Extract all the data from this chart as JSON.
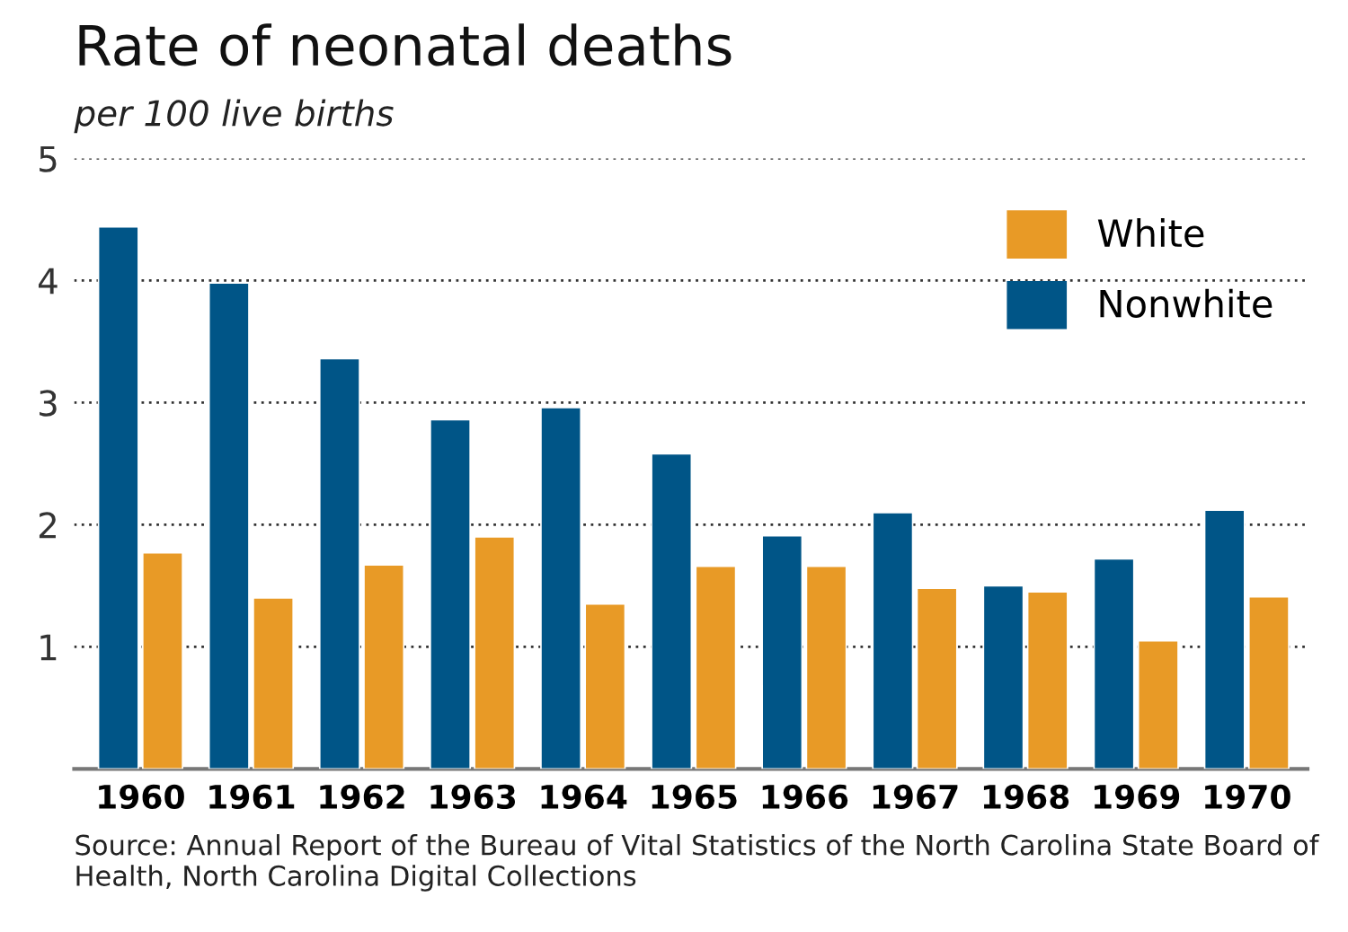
{
  "chart_data": {
    "type": "bar",
    "title": "Rate of neonatal deaths",
    "subtitle": "per 100 live births",
    "categories": [
      "1960",
      "1961",
      "1962",
      "1963",
      "1964",
      "1965",
      "1966",
      "1967",
      "1968",
      "1969",
      "1970"
    ],
    "series": [
      {
        "name": "Nonwhite",
        "color": "#005587",
        "values": [
          4.44,
          3.98,
          3.36,
          2.86,
          2.96,
          2.58,
          1.91,
          2.1,
          1.5,
          1.72,
          2.12
        ]
      },
      {
        "name": "White",
        "color": "#e89a26",
        "values": [
          1.77,
          1.4,
          1.67,
          1.9,
          1.35,
          1.66,
          1.66,
          1.48,
          1.45,
          1.05,
          1.41
        ]
      }
    ],
    "ylim": [
      0,
      5
    ],
    "yticks": [
      1,
      2,
      3,
      4,
      5
    ],
    "grid": "y",
    "legend": "top right",
    "annotations": [
      "Source: Annual Report of the Bureau of Vital Statistics of the North Carolina State Board of Health, North Carolina Digital Collections"
    ]
  }
}
